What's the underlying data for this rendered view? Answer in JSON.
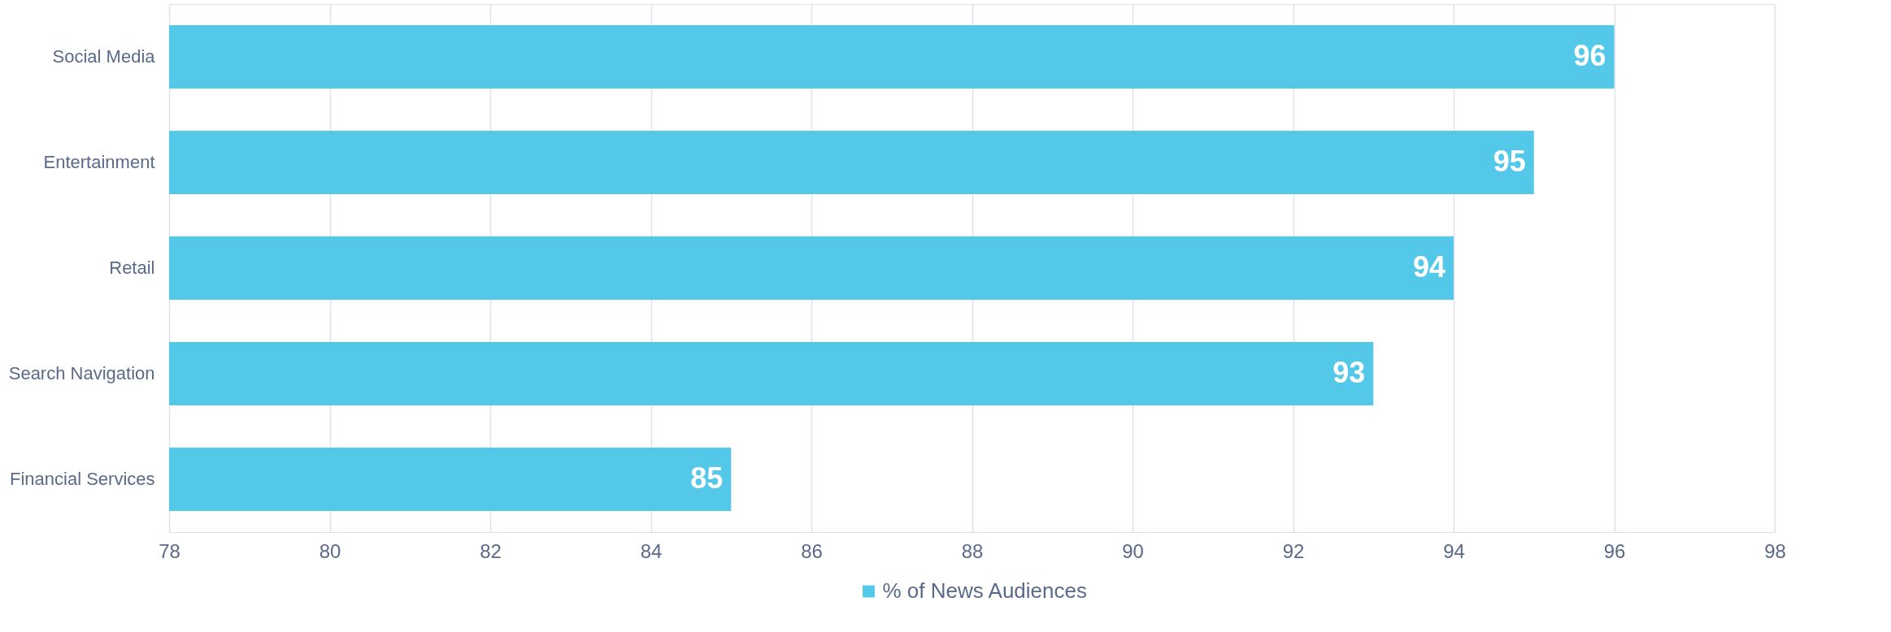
{
  "chart_data": {
    "type": "bar",
    "orientation": "horizontal",
    "categories": [
      "Social Media",
      "Entertainment",
      "Retail",
      "Search Navigation",
      "Financial Services"
    ],
    "series": [
      {
        "name": "% of News Audiences",
        "color": "#53c8e8",
        "values": [
          96,
          95,
          94,
          93,
          85
        ]
      }
    ],
    "xlim": [
      78,
      98
    ],
    "xticks": [
      78,
      80,
      82,
      84,
      86,
      88,
      90,
      92,
      94,
      96,
      98
    ],
    "grid": "x",
    "legend": "bottom",
    "data_labels": true
  }
}
